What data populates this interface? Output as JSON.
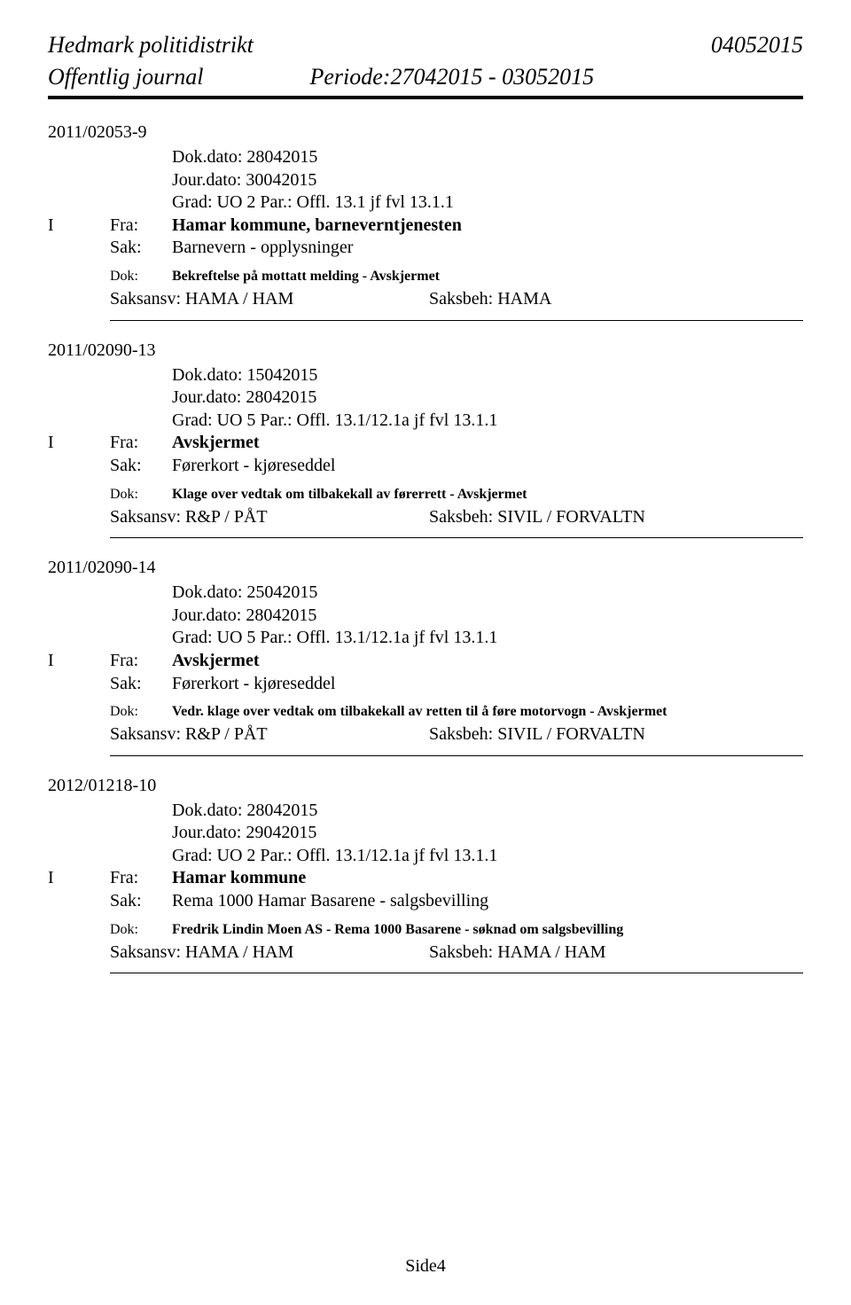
{
  "header": {
    "district": "Hedmark politidistrikt",
    "date": "04052015",
    "journal": "Offentlig journal",
    "period": "Periode:27042015 - 03052015"
  },
  "entries": [
    {
      "case_no": "2011/02053-9",
      "dokdato": "Dok.dato: 28042015",
      "jourdato": "Jour.dato: 30042015",
      "grad": "Grad:  UO 2 Par.:    Offl. 13.1 jf fvl 13.1.1",
      "i": "I",
      "fra_label": "Fra:",
      "fra_value": "Hamar kommune, barneverntjenesten",
      "sak_label": "Sak:",
      "sak_value": "Barnevern - opplysninger",
      "dok_label": "Dok:",
      "dok_value": "Bekreftelse på mottatt melding  - Avskjermet",
      "saksansv": "Saksansv: HAMA / HAM",
      "saksbeh": "Saksbeh: HAMA"
    },
    {
      "case_no": "2011/02090-13",
      "dokdato": "Dok.dato: 15042015",
      "jourdato": "Jour.dato: 28042015",
      "grad": "Grad:  UO 5 Par.:    Offl. 13.1/12.1a jf fvl 13.1.1",
      "i": "I",
      "fra_label": "Fra:",
      "fra_value": "Avskjermet",
      "sak_label": "Sak:",
      "sak_value": "Førerkort - kjøreseddel",
      "dok_label": "Dok:",
      "dok_value": "Klage over vedtak om tilbakekall av førerrett  - Avskjermet",
      "saksansv": "Saksansv: R&P / PÅT",
      "saksbeh": "Saksbeh: SIVIL / FORVALTN"
    },
    {
      "case_no": "2011/02090-14",
      "dokdato": "Dok.dato: 25042015",
      "jourdato": "Jour.dato: 28042015",
      "grad": "Grad:  UO 5 Par.:    Offl. 13.1/12.1a jf fvl 13.1.1",
      "i": "I",
      "fra_label": "Fra:",
      "fra_value": "Avskjermet",
      "sak_label": "Sak:",
      "sak_value": "Førerkort - kjøreseddel",
      "dok_label": "Dok:",
      "dok_value": "Vedr. klage over vedtak om tilbakekall av retten til å føre motorvogn  - Avskjermet",
      "saksansv": "Saksansv: R&P / PÅT",
      "saksbeh": "Saksbeh: SIVIL / FORVALTN"
    },
    {
      "case_no": "2012/01218-10",
      "dokdato": "Dok.dato: 28042015",
      "jourdato": "Jour.dato: 29042015",
      "grad": "Grad:  UO 2 Par.:    Offl. 13.1/12.1a jf fvl 13.1.1",
      "i": "I",
      "fra_label": "Fra:",
      "fra_value": "Hamar kommune",
      "sak_label": "Sak:",
      "sak_value": "Rema 1000 Hamar Basarene - salgsbevilling",
      "dok_label": "Dok:",
      "dok_value": "Fredrik Lindin Moen AS - Rema 1000 Basarene - søknad om salgsbevilling",
      "saksansv": "Saksansv: HAMA / HAM",
      "saksbeh": "Saksbeh: HAMA / HAM"
    }
  ],
  "footer": "Side4"
}
